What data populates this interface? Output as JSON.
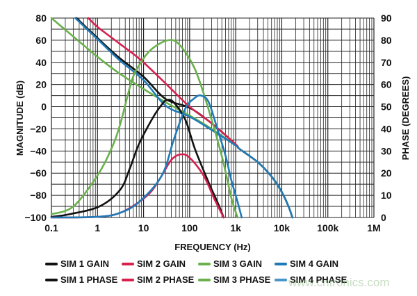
{
  "chart_data": {
    "type": "line",
    "xlabel": "FREQUENCY (Hz)",
    "ylabel": "MAGNITUDE (dB)",
    "y2label": "PHASE (DEGREES)",
    "xscale": "log",
    "xlim": [
      0.1,
      1000000
    ],
    "ylim": [
      -100,
      80
    ],
    "y2lim": [
      0,
      90
    ],
    "grid": true,
    "legend_placement": "bottom",
    "x_ticks": [
      {
        "v": 0.1,
        "label": "0.1"
      },
      {
        "v": 1,
        "label": "1"
      },
      {
        "v": 10,
        "label": "10"
      },
      {
        "v": 100,
        "label": "100"
      },
      {
        "v": 1000,
        "label": "1k"
      },
      {
        "v": 10000,
        "label": "10k"
      },
      {
        "v": 100000,
        "label": "100k"
      },
      {
        "v": 1000000,
        "label": "1M"
      }
    ],
    "y_ticks": [
      {
        "v": 80,
        "label": "80"
      },
      {
        "v": 60,
        "label": "60"
      },
      {
        "v": 40,
        "label": "40"
      },
      {
        "v": 20,
        "label": "20"
      },
      {
        "v": 0,
        "label": "0"
      },
      {
        "v": -20,
        "label": "−20"
      },
      {
        "v": -40,
        "label": "−40"
      },
      {
        "v": -60,
        "label": "−60"
      },
      {
        "v": -80,
        "label": "−80"
      },
      {
        "v": -100,
        "label": "−100"
      }
    ],
    "y2_ticks": [
      {
        "v": 90,
        "label": "90"
      },
      {
        "v": 80,
        "label": "80"
      },
      {
        "v": 70,
        "label": "70"
      },
      {
        "v": 60,
        "label": "60"
      },
      {
        "v": 50,
        "label": "50"
      },
      {
        "v": 40,
        "label": "40"
      },
      {
        "v": 30,
        "label": "30"
      },
      {
        "v": 20,
        "label": "20"
      },
      {
        "v": 10,
        "label": "10"
      },
      {
        "v": 0,
        "label": "0"
      }
    ],
    "series": [
      {
        "name": "SIM 1 GAIN",
        "axis": "left",
        "color": "#111111",
        "points": [
          [
            0.35,
            80
          ],
          [
            1,
            62
          ],
          [
            3,
            44
          ],
          [
            10,
            27
          ],
          [
            30,
            7
          ],
          [
            100,
            -1
          ],
          [
            300,
            -15
          ],
          [
            1000,
            -34
          ],
          [
            1200,
            -38
          ],
          [
            3000,
            -50
          ],
          [
            6000,
            -63
          ],
          [
            10000,
            -77
          ],
          [
            14000,
            -90
          ],
          [
            17000,
            -100
          ]
        ]
      },
      {
        "name": "SIM 2 GAIN",
        "axis": "left",
        "color": "#d6204f",
        "points": [
          [
            0.63,
            80
          ],
          [
            1,
            72
          ],
          [
            3,
            57
          ],
          [
            8.8,
            42
          ],
          [
            30,
            21
          ],
          [
            100,
            0
          ],
          [
            300,
            -15
          ],
          [
            1000,
            -34
          ],
          [
            1200,
            -38
          ],
          [
            3000,
            -50
          ],
          [
            6000,
            -63
          ],
          [
            10000,
            -77
          ],
          [
            14000,
            -90
          ],
          [
            17000,
            -100
          ]
        ]
      },
      {
        "name": "SIM 3 GAIN",
        "axis": "left",
        "color": "#6ab04c",
        "points": [
          [
            0.1,
            80
          ],
          [
            1,
            45
          ],
          [
            3,
            30
          ],
          [
            10,
            16
          ],
          [
            30,
            4
          ],
          [
            100,
            -8
          ],
          [
            300,
            -20
          ],
          [
            1000,
            -35
          ],
          [
            1200,
            -38
          ],
          [
            3000,
            -50
          ],
          [
            6000,
            -63
          ],
          [
            10000,
            -77
          ],
          [
            14000,
            -90
          ],
          [
            17000,
            -100
          ]
        ]
      },
      {
        "name": "SIM 4 GAIN",
        "axis": "left",
        "color": "#1f7ab8",
        "points": [
          [
            0.33,
            80
          ],
          [
            1,
            61
          ],
          [
            3,
            42
          ],
          [
            10,
            24
          ],
          [
            30,
            1
          ],
          [
            100,
            -9
          ],
          [
            300,
            -21
          ],
          [
            1000,
            -35
          ],
          [
            1200,
            -38
          ],
          [
            3000,
            -50
          ],
          [
            6000,
            -63
          ],
          [
            10000,
            -77
          ],
          [
            14000,
            -90
          ],
          [
            17000,
            -100
          ]
        ]
      },
      {
        "name": "SIM 1 PHASE",
        "axis": "right",
        "color": "#111111",
        "points": [
          [
            0.1,
            0.3
          ],
          [
            0.25,
            1.5
          ],
          [
            1.1,
            5
          ],
          [
            3.1,
            12.5
          ],
          [
            5,
            22
          ],
          [
            7.9,
            33
          ],
          [
            15.9,
            45
          ],
          [
            25,
            51
          ],
          [
            32,
            53
          ],
          [
            45,
            52
          ],
          [
            81,
            44
          ],
          [
            130,
            31
          ],
          [
            256,
            16
          ],
          [
            400,
            7
          ],
          [
            550,
            0
          ]
        ]
      },
      {
        "name": "SIM 2 PHASE",
        "axis": "right",
        "color": "#d6204f",
        "points": [
          [
            0.1,
            0
          ],
          [
            1,
            0.3
          ],
          [
            3,
            2
          ],
          [
            8,
            7
          ],
          [
            15,
            12
          ],
          [
            25,
            19
          ],
          [
            40,
            26
          ],
          [
            64,
            28.5
          ],
          [
            100,
            27
          ],
          [
            200,
            19
          ],
          [
            350,
            8
          ],
          [
            550,
            0
          ]
        ]
      },
      {
        "name": "SIM 3 PHASE",
        "axis": "right",
        "color": "#6ab04c",
        "points": [
          [
            0.1,
            1.5
          ],
          [
            0.3,
            5
          ],
          [
            1,
            19
          ],
          [
            2,
            31
          ],
          [
            3.1,
            42
          ],
          [
            5.6,
            62
          ],
          [
            8.8,
            70
          ],
          [
            15,
            76
          ],
          [
            34,
            80
          ],
          [
            60,
            78
          ],
          [
            130,
            67
          ],
          [
            256,
            49
          ],
          [
            510,
            27
          ],
          [
            800,
            9
          ],
          [
            1100,
            0
          ]
        ]
      },
      {
        "name": "SIM 4 PHASE",
        "axis": "right",
        "color": "#1f7ab8",
        "points": [
          [
            0.1,
            0
          ],
          [
            1,
            0.3
          ],
          [
            3,
            2
          ],
          [
            8,
            7
          ],
          [
            25,
            19
          ],
          [
            45,
            35
          ],
          [
            80,
            49
          ],
          [
            130,
            54
          ],
          [
            180,
            55
          ],
          [
            260,
            52
          ],
          [
            400,
            40
          ],
          [
            600,
            28
          ],
          [
            800,
            17
          ],
          [
            1100,
            7
          ],
          [
            1350,
            0
          ]
        ]
      }
    ]
  },
  "legend": [
    {
      "label": "SIM 1 GAIN",
      "color": "#111111"
    },
    {
      "label": "SIM 2 GAIN",
      "color": "#d6204f"
    },
    {
      "label": "SIM 3 GAIN",
      "color": "#6ab04c"
    },
    {
      "label": "SIM 4 GAIN",
      "color": "#1f7ab8"
    },
    {
      "label": "SIM 1 PHASE",
      "color": "#111111"
    },
    {
      "label": "SIM 2 PHASE",
      "color": "#d6204f"
    },
    {
      "label": "SIM 3 PHASE",
      "color": "#6ab04c"
    },
    {
      "label": "SIM 4 PHASE",
      "color": "#4a95c8"
    }
  ],
  "watermark": "www.cntronics.com"
}
